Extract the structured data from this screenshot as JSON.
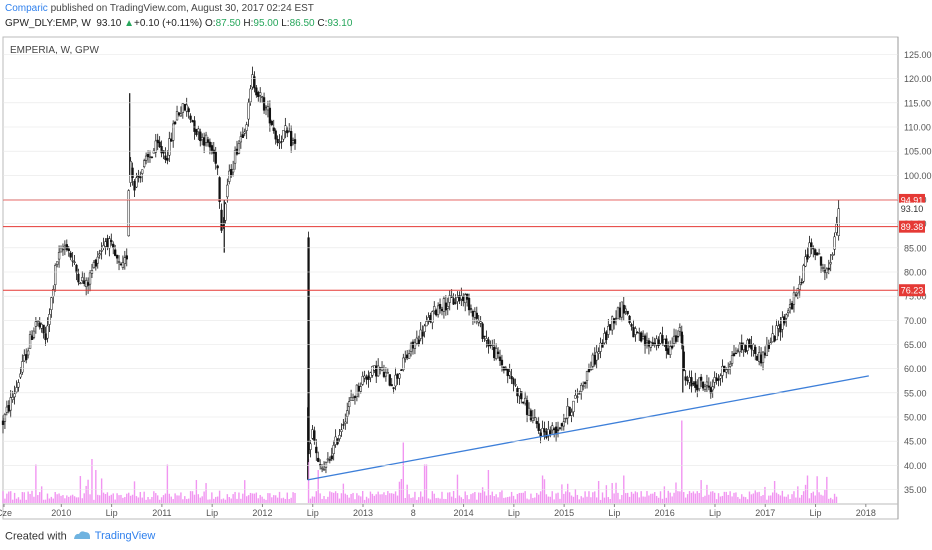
{
  "header": {
    "author": "Comparic",
    "published": "published on TradingView.com, August 30, 2017 02:24 EST",
    "symbol": "GPW_DLY:EMP, W",
    "last": "93.10",
    "change": "+0.10 (+0.11%)",
    "o_label": "O:",
    "o_val": "87.50",
    "h_label": "H:",
    "h_val": "95.00",
    "l_label": "L:",
    "l_val": "86.50",
    "c_label": "C:",
    "c_val": "93.10"
  },
  "footer": {
    "created": "Created with",
    "brand": "TradingView"
  },
  "colors": {
    "candle": "#111111",
    "hline": "#e53935",
    "trend": "#3d7fd9",
    "volume": "#ee82ee",
    "badge": "#e53935",
    "grid": "#e6e6e6"
  },
  "chart_data": {
    "type": "candlestick",
    "title": "EMPERIA, W, GPW",
    "ylim": [
      32,
      128
    ],
    "xlim": [
      2009.42,
      2018.32
    ],
    "y_ticks": [
      "125.00",
      "120.00",
      "115.00",
      "110.00",
      "105.00",
      "100.00",
      "95.00",
      "90.00",
      "85.00",
      "80.00",
      "75.00",
      "70.00",
      "65.00",
      "60.00",
      "55.00",
      "50.00",
      "45.00",
      "40.00",
      "35.00"
    ],
    "x_ticks": [
      {
        "label": "Cze",
        "t": 2009.43
      },
      {
        "label": "2010",
        "t": 2010.0
      },
      {
        "label": "Lip",
        "t": 2010.5
      },
      {
        "label": "2011",
        "t": 2011.0
      },
      {
        "label": "Lip",
        "t": 2011.5
      },
      {
        "label": "2012",
        "t": 2012.0
      },
      {
        "label": "Lip",
        "t": 2012.5
      },
      {
        "label": "2013",
        "t": 2013.0
      },
      {
        "label": "8",
        "t": 2013.5
      },
      {
        "label": "2014",
        "t": 2014.0
      },
      {
        "label": "Lip",
        "t": 2014.5
      },
      {
        "label": "2015",
        "t": 2015.0
      },
      {
        "label": "Lip",
        "t": 2015.5
      },
      {
        "label": "2016",
        "t": 2016.0
      },
      {
        "label": "Lip",
        "t": 2016.5
      },
      {
        "label": "2017",
        "t": 2017.0
      },
      {
        "label": "Lip",
        "t": 2017.5
      },
      {
        "label": "2018",
        "t": 2018.0
      }
    ],
    "horizontal_levels": [
      {
        "value": 94.91,
        "label": "94.91"
      },
      {
        "value": 89.38,
        "label": "89.38"
      },
      {
        "value": 76.23,
        "label": "76.23"
      }
    ],
    "last_price_label": "93.10",
    "trendline": {
      "from": [
        2012.45,
        37.0
      ],
      "to": [
        2018.03,
        58.5
      ]
    },
    "price_path": [
      [
        2009.42,
        49
      ],
      [
        2009.55,
        56
      ],
      [
        2009.65,
        63
      ],
      [
        2009.75,
        70
      ],
      [
        2009.85,
        66
      ],
      [
        2009.95,
        82
      ],
      [
        2010.05,
        86
      ],
      [
        2010.15,
        80
      ],
      [
        2010.25,
        77
      ],
      [
        2010.35,
        83
      ],
      [
        2010.45,
        87
      ],
      [
        2010.6,
        80
      ],
      [
        2010.65,
        83
      ],
      [
        2010.68,
        105
      ],
      [
        2010.72,
        98
      ],
      [
        2010.82,
        102
      ],
      [
        2010.95,
        106
      ],
      [
        2011.05,
        104
      ],
      [
        2011.15,
        113
      ],
      [
        2011.25,
        114
      ],
      [
        2011.35,
        109
      ],
      [
        2011.45,
        107
      ],
      [
        2011.55,
        103
      ],
      [
        2011.6,
        88
      ],
      [
        2011.65,
        98
      ],
      [
        2011.75,
        106
      ],
      [
        2011.85,
        112
      ],
      [
        2011.9,
        120
      ],
      [
        2011.98,
        116
      ],
      [
        2012.08,
        112
      ],
      [
        2012.15,
        107
      ],
      [
        2012.22,
        109
      ],
      [
        2012.33,
        106
      ],
      [
        2012.45,
        42
      ],
      [
        2012.5,
        47
      ],
      [
        2012.55,
        40
      ],
      [
        2012.62,
        39
      ],
      [
        2012.72,
        44
      ],
      [
        2012.85,
        52
      ],
      [
        2013.0,
        58
      ],
      [
        2013.15,
        60
      ],
      [
        2013.3,
        57
      ],
      [
        2013.45,
        63
      ],
      [
        2013.6,
        68
      ],
      [
        2013.75,
        73
      ],
      [
        2013.9,
        74
      ],
      [
        2014.0,
        75
      ],
      [
        2014.1,
        72
      ],
      [
        2014.2,
        67
      ],
      [
        2014.35,
        62
      ],
      [
        2014.5,
        57
      ],
      [
        2014.65,
        51
      ],
      [
        2014.75,
        47
      ],
      [
        2014.85,
        47
      ],
      [
        2014.95,
        48
      ],
      [
        2015.1,
        53
      ],
      [
        2015.25,
        60
      ],
      [
        2015.4,
        66
      ],
      [
        2015.5,
        71
      ],
      [
        2015.6,
        73
      ],
      [
        2015.7,
        67
      ],
      [
        2015.82,
        65
      ],
      [
        2015.95,
        66
      ],
      [
        2016.05,
        64
      ],
      [
        2016.15,
        69
      ],
      [
        2016.2,
        57
      ],
      [
        2016.35,
        57
      ],
      [
        2016.45,
        56
      ],
      [
        2016.6,
        60
      ],
      [
        2016.72,
        64
      ],
      [
        2016.85,
        65
      ],
      [
        2016.95,
        62
      ],
      [
        2017.1,
        67
      ],
      [
        2017.2,
        71
      ],
      [
        2017.33,
        76
      ],
      [
        2017.42,
        84
      ],
      [
        2017.48,
        86
      ],
      [
        2017.55,
        82
      ],
      [
        2017.62,
        79
      ],
      [
        2017.68,
        86
      ],
      [
        2017.72,
        93.1
      ]
    ],
    "volume_spikes": [
      [
        2009.75,
        7
      ],
      [
        2010.3,
        8
      ],
      [
        2010.35,
        6
      ],
      [
        2011.05,
        7
      ],
      [
        2012.45,
        8
      ],
      [
        2012.55,
        6
      ],
      [
        2013.4,
        11
      ],
      [
        2013.62,
        7
      ],
      [
        2014.25,
        6
      ],
      [
        2014.78,
        5
      ],
      [
        2015.6,
        5
      ],
      [
        2016.17,
        15
      ],
      [
        2017.1,
        4
      ],
      [
        2017.42,
        5
      ]
    ]
  }
}
